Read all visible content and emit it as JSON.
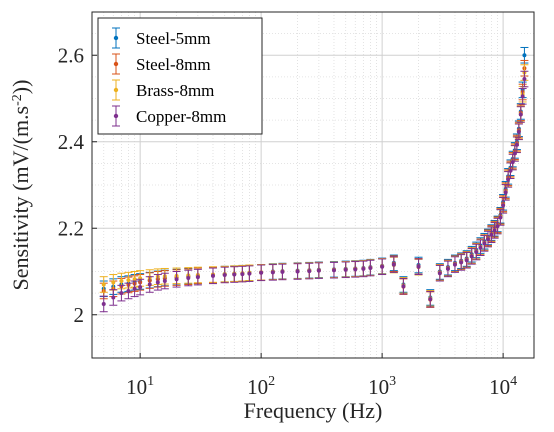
{
  "chart_data": {
    "type": "scatter",
    "title": "",
    "xlabel": "Frequency (Hz)",
    "ylabel_main": "Sensitivity (mV/(m.s",
    "ylabel_sup": "-2",
    "ylabel_tail": "))",
    "xscale": "log",
    "xlim": [
      4,
      18000
    ],
    "ylim": [
      1.9,
      2.7
    ],
    "x_ticks": [
      10,
      100,
      1000,
      10000
    ],
    "x_tick_labels": [
      {
        "base": "10",
        "exp": "1"
      },
      {
        "base": "10",
        "exp": "2"
      },
      {
        "base": "10",
        "exp": "3"
      },
      {
        "base": "10",
        "exp": "4"
      }
    ],
    "y_ticks": [
      2.0,
      2.2,
      2.4,
      2.6
    ],
    "y_tick_labels": [
      "2",
      "2.2",
      "2.4",
      "2.6"
    ],
    "grid": true,
    "minor_grid": true,
    "legend_position": "top-left",
    "error_bar": 0.018,
    "x": [
      5,
      6,
      7,
      8,
      9,
      10,
      12,
      14,
      16,
      20,
      25,
      30,
      40,
      50,
      60,
      70,
      80,
      100,
      125,
      150,
      200,
      250,
      300,
      400,
      500,
      600,
      700,
      800,
      1000,
      1250,
      1500,
      2000,
      2500,
      3000,
      3500,
      4000,
      4500,
      5000,
      5500,
      6000,
      6500,
      7000,
      7500,
      8000,
      8500,
      9000,
      9500,
      10000,
      10500,
      11000,
      11500,
      12000,
      12500,
      13000,
      13500,
      14000,
      14500,
      15000
    ],
    "series": [
      {
        "name": "Steel-5mm",
        "color": "#0072BD",
        "values": [
          2.06,
          2.065,
          2.07,
          2.072,
          2.075,
          2.077,
          2.08,
          2.083,
          2.085,
          2.087,
          2.089,
          2.09,
          2.092,
          2.094,
          2.095,
          2.096,
          2.097,
          2.098,
          2.1,
          2.101,
          2.102,
          2.103,
          2.104,
          2.105,
          2.106,
          2.107,
          2.108,
          2.11,
          2.113,
          2.12,
          2.07,
          2.115,
          2.04,
          2.1,
          2.11,
          2.12,
          2.125,
          2.13,
          2.14,
          2.15,
          2.16,
          2.17,
          2.18,
          2.19,
          2.2,
          2.21,
          2.23,
          2.26,
          2.29,
          2.32,
          2.34,
          2.36,
          2.38,
          2.4,
          2.43,
          2.47,
          2.52,
          2.6
        ]
      },
      {
        "name": "Steel-8mm",
        "color": "#D95319",
        "values": [
          2.055,
          2.06,
          2.066,
          2.069,
          2.072,
          2.075,
          2.079,
          2.082,
          2.084,
          2.086,
          2.088,
          2.09,
          2.092,
          2.093,
          2.094,
          2.095,
          2.096,
          2.098,
          2.099,
          2.1,
          2.101,
          2.102,
          2.103,
          2.104,
          2.105,
          2.106,
          2.107,
          2.109,
          2.112,
          2.118,
          2.065,
          2.112,
          2.035,
          2.098,
          2.108,
          2.118,
          2.123,
          2.128,
          2.137,
          2.147,
          2.157,
          2.167,
          2.178,
          2.188,
          2.198,
          2.208,
          2.228,
          2.257,
          2.287,
          2.317,
          2.337,
          2.357,
          2.377,
          2.397,
          2.427,
          2.467,
          2.515,
          2.57
        ]
      },
      {
        "name": "Brass-8mm",
        "color": "#EDB120",
        "values": [
          2.07,
          2.075,
          2.078,
          2.08,
          2.082,
          2.084,
          2.086,
          2.088,
          2.089,
          2.09,
          2.091,
          2.092,
          2.093,
          2.094,
          2.095,
          2.096,
          2.097,
          2.098,
          2.099,
          2.1,
          2.101,
          2.102,
          2.103,
          2.104,
          2.105,
          2.106,
          2.107,
          2.109,
          2.112,
          2.115,
          2.068,
          2.11,
          2.038,
          2.097,
          2.107,
          2.117,
          2.122,
          2.127,
          2.136,
          2.146,
          2.156,
          2.166,
          2.176,
          2.186,
          2.196,
          2.206,
          2.226,
          2.254,
          2.284,
          2.314,
          2.334,
          2.354,
          2.374,
          2.394,
          2.424,
          2.464,
          2.51,
          2.56
        ]
      },
      {
        "name": "Copper-8mm",
        "color": "#7E2F8E",
        "values": [
          2.025,
          2.04,
          2.05,
          2.055,
          2.06,
          2.064,
          2.07,
          2.075,
          2.078,
          2.082,
          2.085,
          2.087,
          2.09,
          2.092,
          2.093,
          2.094,
          2.095,
          2.097,
          2.098,
          2.099,
          2.1,
          2.101,
          2.102,
          2.103,
          2.104,
          2.105,
          2.106,
          2.108,
          2.111,
          2.116,
          2.066,
          2.111,
          2.036,
          2.096,
          2.106,
          2.116,
          2.121,
          2.126,
          2.135,
          2.145,
          2.155,
          2.165,
          2.175,
          2.185,
          2.195,
          2.205,
          2.225,
          2.253,
          2.283,
          2.313,
          2.333,
          2.353,
          2.373,
          2.393,
          2.423,
          2.463,
          2.505,
          2.545
        ]
      }
    ]
  }
}
